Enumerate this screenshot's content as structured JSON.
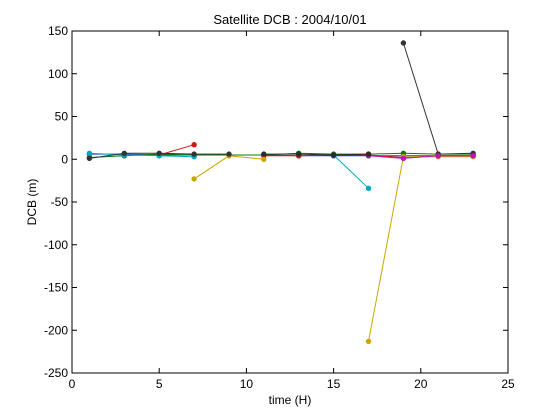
{
  "chart_data": {
    "type": "line",
    "title": "Satellite DCB : 2004/10/01",
    "xlabel": "time (H)",
    "ylabel": "DCB (m)",
    "xlim": [
      0,
      25
    ],
    "ylim": [
      -250,
      150
    ],
    "xticks": [
      "0",
      "5",
      "10",
      "15",
      "20",
      "25"
    ],
    "yticks": [
      "150",
      "100",
      "50",
      "0",
      "-50",
      "-100",
      "-150",
      "-200",
      "-250"
    ],
    "grid": false,
    "legend": "none",
    "series": [
      {
        "color": "#1f3fd0",
        "x": [
          1,
          3,
          5,
          7,
          9,
          11,
          13,
          15,
          17,
          19,
          21,
          23
        ],
        "y": [
          6,
          6,
          5,
          5,
          5,
          5,
          4,
          4,
          4,
          4,
          4,
          4
        ]
      },
      {
        "color": "#0a7a0a",
        "x": [
          1,
          3,
          5,
          7,
          9,
          11,
          13,
          15,
          17,
          19,
          21,
          23
        ],
        "y": [
          2,
          4,
          6,
          5,
          5,
          5,
          7,
          6,
          6,
          7,
          6,
          6
        ]
      },
      {
        "color": "#d81515",
        "x": [
          5,
          7
        ],
        "y": [
          5,
          17
        ]
      },
      {
        "color": "#d81515",
        "x": [
          11,
          13,
          15,
          17,
          19,
          21,
          23
        ],
        "y": [
          4,
          4,
          5,
          5,
          2,
          4,
          4
        ]
      },
      {
        "color": "#c8a800",
        "x": [
          7,
          9,
          11
        ],
        "y": [
          -23,
          4,
          0
        ]
      },
      {
        "color": "#c8a800",
        "x": [
          17,
          19,
          21,
          23
        ],
        "y": [
          -213,
          3,
          3,
          3
        ]
      },
      {
        "color": "#00a8c8",
        "x": [
          1,
          3,
          5,
          7
        ],
        "y": [
          7,
          5,
          4,
          3
        ]
      },
      {
        "color": "#00a8c8",
        "x": [
          15,
          17
        ],
        "y": [
          5,
          -34
        ]
      },
      {
        "color": "#333333",
        "x": [
          19,
          21,
          23
        ],
        "y": [
          136,
          6,
          7
        ]
      },
      {
        "color": "#333333",
        "x": [
          1,
          3,
          5,
          7,
          9
        ],
        "y": [
          1,
          7,
          7,
          6,
          6
        ]
      },
      {
        "color": "#c010c0",
        "x": [
          17,
          19,
          21,
          23
        ],
        "y": [
          4,
          1,
          4,
          4
        ]
      },
      {
        "color": "#2a2a2a",
        "x": [
          11,
          13,
          15,
          17
        ],
        "y": [
          6,
          6,
          5,
          6
        ]
      }
    ]
  }
}
